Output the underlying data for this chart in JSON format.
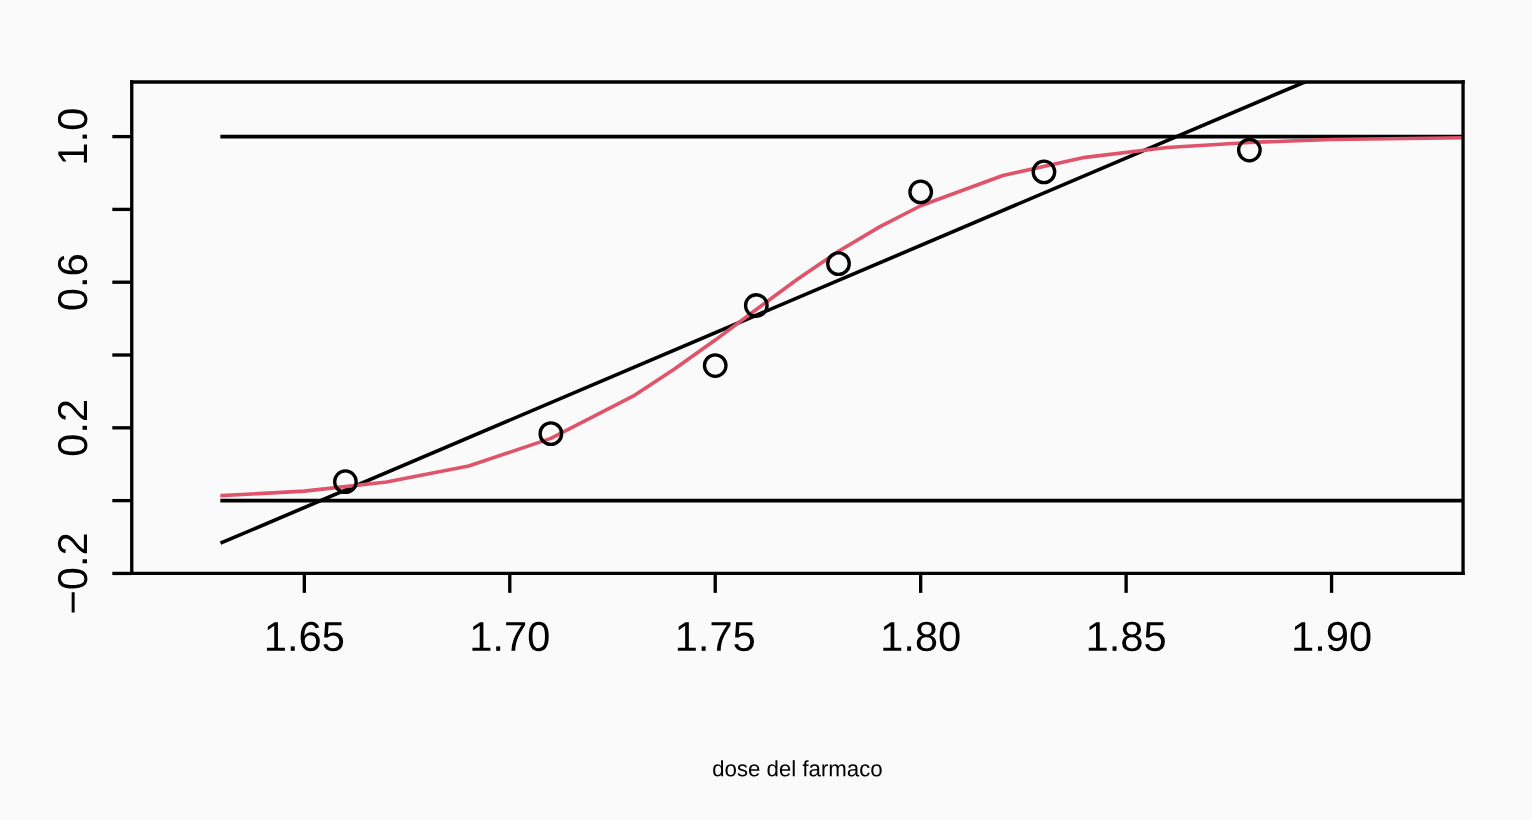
{
  "chart_data": {
    "type": "scatter",
    "xlabel": "dose del farmaco",
    "xlim": [
      1.608,
      1.932
    ],
    "ylim": [
      -0.2,
      1.15
    ],
    "xticks": [
      1.65,
      {
        "value": 1.7,
        "label": "1.70"
      },
      1.75,
      {
        "value": 1.8,
        "label": "1.80"
      },
      1.85,
      {
        "value": 1.9,
        "label": "1.90"
      }
    ],
    "yticks": [
      {
        "value": -0.2,
        "label": "−0.2"
      },
      {
        "value": 0.0,
        "label": null
      },
      {
        "value": 0.2,
        "label": "0.2"
      },
      {
        "value": 0.4,
        "label": null
      },
      {
        "value": 0.6,
        "label": "0.6"
      },
      {
        "value": 0.8,
        "label": null
      },
      {
        "value": 1.0,
        "label": "1.0"
      }
    ],
    "grid": false,
    "legend": false,
    "series": [
      {
        "marker": "circle",
        "color": "#000000",
        "x": [
          1.66,
          1.71,
          1.75,
          1.76,
          1.78,
          1.8,
          1.83,
          1.88
        ],
        "values": [
          0.052,
          0.184,
          0.371,
          0.536,
          0.651,
          0.848,
          0.903,
          0.963
        ]
      },
      {
        "type": "line",
        "marker": "none",
        "color": "#000000",
        "x": [
          1.63,
          1.932
        ],
        "values": [
          0.0,
          0.0
        ]
      },
      {
        "type": "line",
        "marker": "none",
        "color": "#000000",
        "x": [
          1.63,
          1.932
        ],
        "values": [
          1.0,
          1.0
        ]
      },
      {
        "type": "line",
        "marker": "none",
        "color": "#000000",
        "x": [
          1.63,
          1.8935
        ],
        "values": [
          -0.115,
          1.15
        ]
      },
      {
        "type": "line",
        "marker": "none",
        "color": "#df536b",
        "x": [
          1.63,
          1.65,
          1.67,
          1.69,
          1.71,
          1.73,
          1.74,
          1.75,
          1.76,
          1.77,
          1.78,
          1.79,
          1.8,
          1.82,
          1.84,
          1.86,
          1.88,
          1.9,
          1.932
        ],
        "values": [
          0.014,
          0.026,
          0.051,
          0.095,
          0.171,
          0.287,
          0.361,
          0.441,
          0.525,
          0.608,
          0.685,
          0.752,
          0.81,
          0.893,
          0.943,
          0.97,
          0.984,
          0.992,
          0.997
        ]
      }
    ]
  }
}
